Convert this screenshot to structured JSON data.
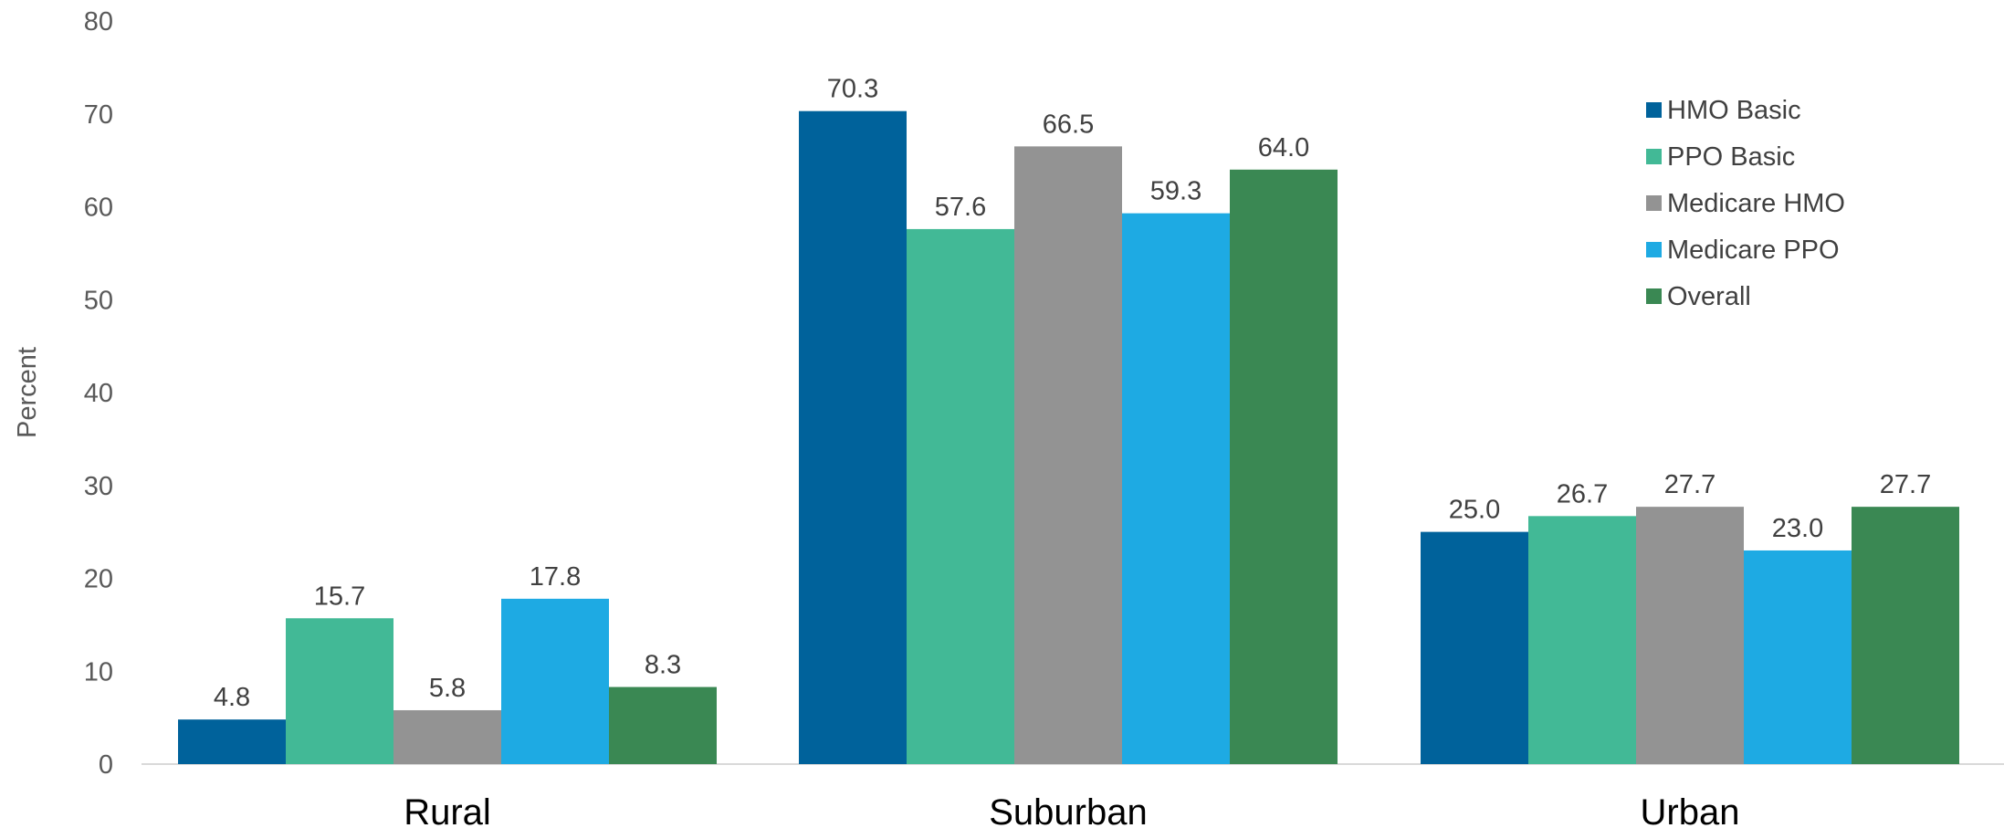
{
  "chart_data": {
    "type": "bar",
    "title": "",
    "xlabel": "",
    "ylabel": "Percent",
    "ylim": [
      0,
      80
    ],
    "yticks": [
      0,
      10,
      20,
      30,
      40,
      50,
      60,
      70,
      80
    ],
    "grid": false,
    "legend_position": "top-right",
    "categories": [
      "Rural",
      "Suburban",
      "Urban"
    ],
    "series": [
      {
        "name": "HMO Basic",
        "color": "#00629b",
        "values": [
          4.8,
          70.3,
          25.0
        ],
        "labels": [
          "4.8",
          "70.3",
          "25.0"
        ]
      },
      {
        "name": "PPO Basic",
        "color": "#42b996",
        "values": [
          15.7,
          57.6,
          26.7
        ],
        "labels": [
          "15.7",
          "57.6",
          "26.7"
        ]
      },
      {
        "name": "Medicare HMO",
        "color": "#939393",
        "values": [
          5.8,
          66.5,
          27.7
        ],
        "labels": [
          "5.8",
          "66.5",
          "27.7"
        ]
      },
      {
        "name": "Medicare PPO",
        "color": "#1eaae3",
        "values": [
          17.8,
          59.3,
          23.0
        ],
        "labels": [
          "17.8",
          "59.3",
          "23.0"
        ]
      },
      {
        "name": "Overall",
        "color": "#3a8853",
        "values": [
          8.3,
          64.0,
          27.7
        ],
        "labels": [
          "8.3",
          "64.0",
          "27.7"
        ]
      }
    ]
  }
}
